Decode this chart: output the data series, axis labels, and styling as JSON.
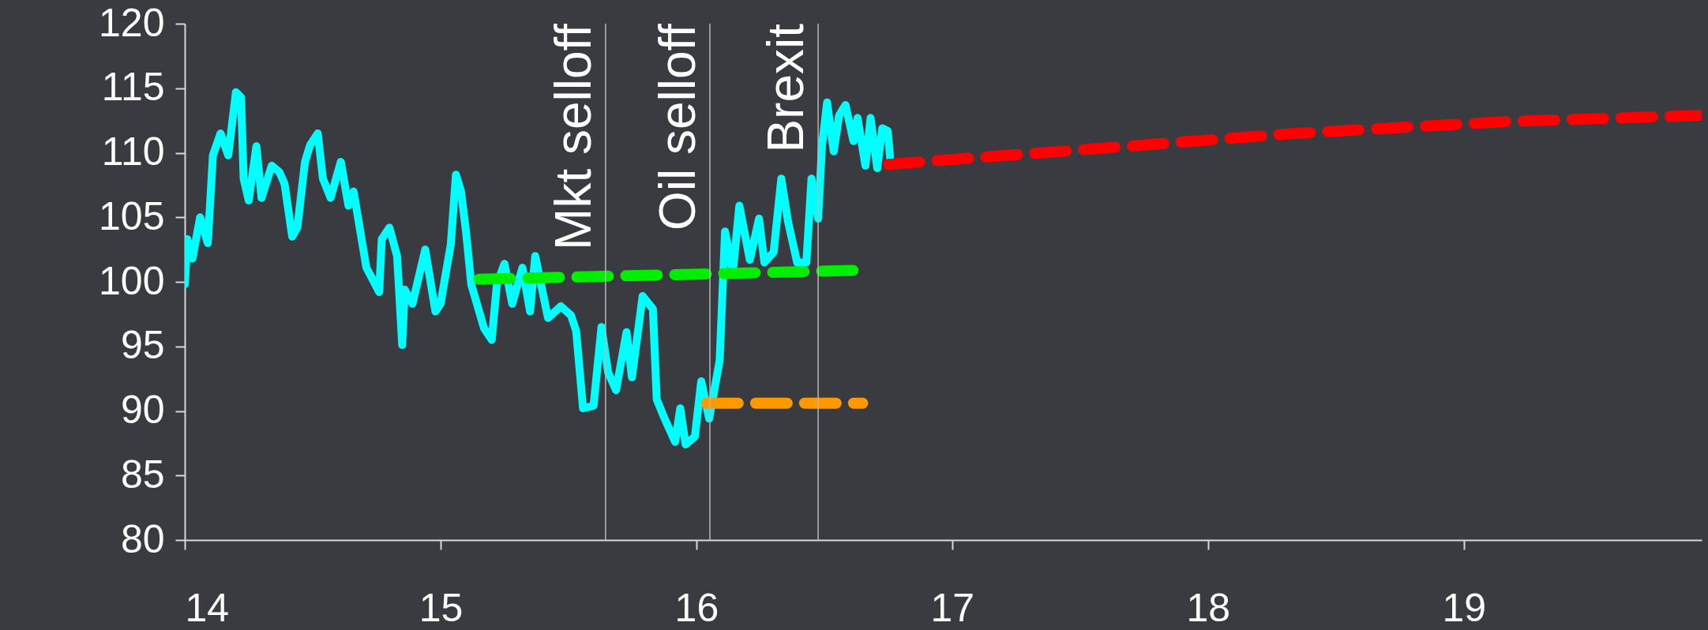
{
  "chart_data": {
    "type": "line",
    "xlim": [
      14,
      19.93
    ],
    "xticks": [
      14,
      15,
      16,
      17,
      18,
      19
    ],
    "ylim": [
      80,
      120
    ],
    "yticks": [
      80,
      85,
      90,
      95,
      100,
      105,
      110,
      115,
      120
    ],
    "grid": false,
    "series": [
      {
        "color": "#00ffff",
        "line_style": "solid",
        "x": [
          14.0,
          14.01,
          14.03,
          14.06,
          14.09,
          14.11,
          14.14,
          14.17,
          14.2,
          14.22,
          14.23,
          14.25,
          14.28,
          14.3,
          14.34,
          14.37,
          14.39,
          14.42,
          14.44,
          14.47,
          14.49,
          14.52,
          14.54,
          14.57,
          14.61,
          14.64,
          14.66,
          14.71,
          14.75,
          14.76,
          14.77,
          14.8,
          14.83,
          14.85,
          14.86,
          14.89,
          14.94,
          14.98,
          15.0,
          15.04,
          15.06,
          15.08,
          15.1,
          15.12,
          15.17,
          15.2,
          15.22,
          15.25,
          15.28,
          15.32,
          15.35,
          15.37,
          15.42,
          15.47,
          15.51,
          15.53,
          15.557,
          15.598,
          15.629,
          15.655,
          15.686,
          15.727,
          15.748,
          15.79,
          15.83,
          15.845,
          15.876,
          15.917,
          15.937,
          15.958,
          15.994,
          16.019,
          16.05,
          16.091,
          16.112,
          16.143,
          16.168,
          16.209,
          16.245,
          16.266,
          16.302,
          16.332,
          16.358,
          16.394,
          16.43,
          16.45,
          16.476,
          16.491,
          16.511,
          16.537,
          16.558,
          16.583,
          16.614,
          16.63,
          16.661,
          16.681,
          16.707,
          16.727,
          16.748,
          16.758
        ],
        "values": [
          99.8,
          103.3,
          101.8,
          105,
          103,
          109.8,
          111.5,
          109.8,
          114.7,
          114.3,
          108,
          106.3,
          110.5,
          106.5,
          109,
          108.5,
          107.6,
          103.5,
          104.2,
          109.3,
          110.6,
          111.5,
          108,
          106.5,
          109.3,
          105.9,
          107,
          101.1,
          99.6,
          99.2,
          103.3,
          104.2,
          102,
          95.1,
          99.4,
          98.3,
          102.5,
          97.7,
          98.3,
          102.9,
          108.3,
          107,
          103.8,
          99.8,
          96.4,
          95.5,
          99.8,
          101.4,
          98.3,
          101.1,
          97.7,
          102,
          97.2,
          98.1,
          97.4,
          96.2,
          90.2,
          90.4,
          96.5,
          93.0,
          91.6,
          96.1,
          92.6,
          98.9,
          97.9,
          90.9,
          89.4,
          87.6,
          90.2,
          87.4,
          88.0,
          92.3,
          89.4,
          93.9,
          103.9,
          100.8,
          105.9,
          101.7,
          104.9,
          101.5,
          102.3,
          108.0,
          104.7,
          101.5,
          101.5,
          108.0,
          104.9,
          110.5,
          113.9,
          110.1,
          112.9,
          113.7,
          110.9,
          112.7,
          109.0,
          112.7,
          108.8,
          111.9,
          111.7,
          109.5
        ]
      },
      {
        "color": "#00ee00",
        "line_style": "dashed",
        "x": [
          15.15,
          16.65
        ],
        "values": [
          100.2,
          100.9
        ]
      },
      {
        "color": "#ff9900",
        "line_style": "dashed",
        "x": [
          16.04,
          16.65
        ],
        "values": [
          90.6,
          90.6
        ]
      },
      {
        "color": "#ff0000",
        "line_style": "dashed",
        "x": [
          16.75,
          17.55,
          18.34,
          19.15,
          19.93
        ],
        "values": [
          109.1,
          110.3,
          111.5,
          112.4,
          112.9
        ]
      }
    ],
    "ref_lines": [
      {
        "axis": "x",
        "value": 15.645,
        "label": "Mkt selloff"
      },
      {
        "axis": "x",
        "value": 16.053,
        "label": "Oil selloff"
      },
      {
        "axis": "x",
        "value": 16.476,
        "label": "Brexit"
      }
    ]
  }
}
